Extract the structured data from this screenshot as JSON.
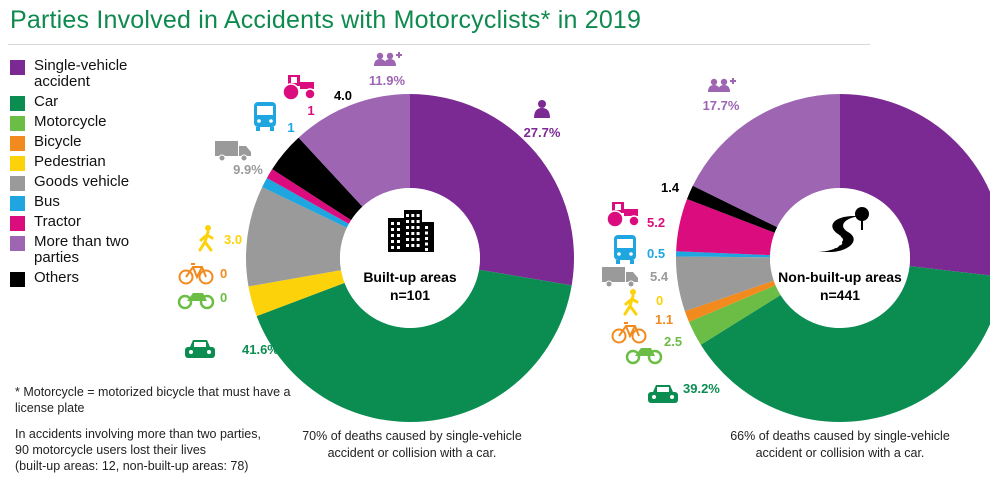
{
  "title": "Parties Involved in Accidents with Motorcyclists* in 2019",
  "legend": [
    {
      "label": "Single-vehicle\naccident",
      "color": "#7b2a93"
    },
    {
      "label": "Car",
      "color": "#0b8d52"
    },
    {
      "label": "Motorcycle",
      "color": "#6cbd45"
    },
    {
      "label": "Bicycle",
      "color": "#f28a1e"
    },
    {
      "label": "Pedestrian",
      "color": "#fcd20a"
    },
    {
      "label": "Goods vehicle",
      "color": "#9a9a9a"
    },
    {
      "label": "Bus",
      "color": "#1fa6e0"
    },
    {
      "label": "Tractor",
      "color": "#db0d7e"
    },
    {
      "label": "More than two\nparties",
      "color": "#9d65b2"
    },
    {
      "label": "Others",
      "color": "#000000"
    }
  ],
  "footnote_definition": "* Motorcycle = motorized bicycle that must have a\nlicense plate",
  "footnote_note": "In accidents involving more than two parties,\n90 motorcycle users lost their lives\n(built-up areas: 12, non-built-up areas: 78)",
  "chart_data": [
    {
      "type": "pie",
      "title": "Built-up areas",
      "subtitle": "n=101",
      "caption": "70% of deaths caused by single-vehicle\naccident or collision with a car.",
      "categories": [
        "Single-vehicle accident",
        "Car",
        "Motorcycle",
        "Bicycle",
        "Pedestrian",
        "Goods vehicle",
        "Bus",
        "Tractor",
        "Others",
        "More than two parties"
      ],
      "values": [
        27.7,
        41.6,
        0,
        0,
        3.0,
        9.9,
        1,
        1,
        4.0,
        11.9
      ],
      "labels": [
        "27.7%",
        "41.6%",
        "0",
        "0",
        "3.0",
        "9.9%",
        "1",
        "1",
        "4.0",
        "11.9%"
      ],
      "colors": [
        "#7b2a93",
        "#0b8d52",
        "#6cbd45",
        "#f28a1e",
        "#fcd20a",
        "#9a9a9a",
        "#1fa6e0",
        "#db0d7e",
        "#000000",
        "#9d65b2"
      ],
      "icons": [
        "person-icon",
        "car-icon",
        "motorcycle-icon",
        "bicycle-icon",
        "pedestrian-icon",
        "truck-icon",
        "bus-icon",
        "tractor-icon",
        "",
        "group-icon"
      ]
    },
    {
      "type": "pie",
      "title": "Non-built-up areas",
      "subtitle": "n=441",
      "caption": "66% of deaths caused by single-vehicle\naccident or collision with a car.",
      "categories": [
        "Single-vehicle accident",
        "Car",
        "Motorcycle",
        "Bicycle",
        "Pedestrian",
        "Goods vehicle",
        "Bus",
        "Tractor",
        "Others",
        "More than two parties"
      ],
      "values": [
        26.8,
        39.2,
        2.5,
        1.1,
        0,
        5.4,
        0.5,
        5.2,
        1.4,
        17.7
      ],
      "labels": [
        "",
        "39.2%",
        "2.5",
        "1.1",
        "0",
        "5.4",
        "0.5",
        "5.2",
        "1.4",
        "17.7%"
      ],
      "colors": [
        "#7b2a93",
        "#0b8d52",
        "#6cbd45",
        "#f28a1e",
        "#fcd20a",
        "#9a9a9a",
        "#1fa6e0",
        "#db0d7e",
        "#000000",
        "#9d65b2"
      ],
      "icons": [
        "person-icon",
        "car-icon",
        "motorcycle-icon",
        "bicycle-icon",
        "pedestrian-icon",
        "truck-icon",
        "bus-icon",
        "tractor-icon",
        "",
        "group-icon"
      ]
    }
  ]
}
